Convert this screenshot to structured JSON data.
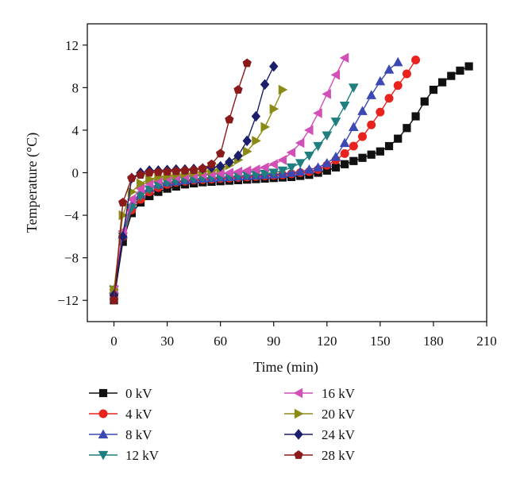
{
  "chart_data": {
    "type": "line",
    "xlabel": "Time (min)",
    "ylabel": "Temperature (°C)",
    "xlim": [
      -15,
      210
    ],
    "ylim": [
      -14,
      14
    ],
    "xticks": [
      0,
      30,
      60,
      90,
      120,
      150,
      180,
      210
    ],
    "xtick_labels": [
      "0",
      "30",
      "60",
      "90",
      "120",
      "150",
      "180",
      "210"
    ],
    "yticks": [
      -12,
      -8,
      -4,
      0,
      4,
      8,
      12
    ],
    "ytick_labels": [
      "−12",
      "−8",
      "−4",
      "0",
      "4",
      "8",
      "12"
    ],
    "grid": false,
    "legend_position": "bottom",
    "series": [
      {
        "name": "0 kV",
        "color": "#111111",
        "marker": "square",
        "x": [
          0,
          5,
          10,
          15,
          20,
          25,
          30,
          35,
          40,
          45,
          50,
          55,
          60,
          65,
          70,
          75,
          80,
          85,
          90,
          95,
          100,
          105,
          110,
          115,
          120,
          125,
          130,
          135,
          140,
          145,
          150,
          155,
          160,
          165,
          170,
          175,
          180,
          185,
          190,
          195,
          200
        ],
        "y": [
          -12,
          -6.5,
          -3.8,
          -2.8,
          -2.2,
          -1.8,
          -1.5,
          -1.3,
          -1.1,
          -1.0,
          -0.9,
          -0.85,
          -0.8,
          -0.75,
          -0.7,
          -0.65,
          -0.6,
          -0.55,
          -0.5,
          -0.45,
          -0.4,
          -0.3,
          -0.2,
          0.0,
          0.2,
          0.5,
          0.8,
          1.1,
          1.4,
          1.7,
          2.0,
          2.5,
          3.2,
          4.2,
          5.3,
          6.7,
          7.8,
          8.5,
          9.1,
          9.6,
          10.0
        ]
      },
      {
        "name": "4 kV",
        "color": "#e8231d",
        "marker": "circle",
        "x": [
          0,
          5,
          10,
          15,
          20,
          25,
          30,
          35,
          40,
          45,
          50,
          55,
          60,
          65,
          70,
          75,
          80,
          85,
          90,
          95,
          100,
          105,
          110,
          115,
          120,
          125,
          130,
          135,
          140,
          145,
          150,
          155,
          160,
          165,
          170
        ],
        "y": [
          -11.5,
          -6,
          -3.5,
          -2.5,
          -1.8,
          -1.4,
          -1.1,
          -0.9,
          -0.8,
          -0.7,
          -0.65,
          -0.6,
          -0.55,
          -0.5,
          -0.45,
          -0.4,
          -0.35,
          -0.3,
          -0.25,
          -0.2,
          -0.1,
          0.0,
          0.1,
          0.3,
          0.7,
          1.2,
          1.8,
          2.5,
          3.4,
          4.5,
          5.7,
          7.0,
          8.2,
          9.3,
          10.6
        ]
      },
      {
        "name": "8 kV",
        "color": "#3c49b5",
        "marker": "triangle-up",
        "x": [
          0,
          5,
          10,
          15,
          20,
          25,
          30,
          35,
          40,
          45,
          50,
          55,
          60,
          65,
          70,
          75,
          80,
          85,
          90,
          95,
          100,
          105,
          110,
          115,
          120,
          125,
          130,
          135,
          140,
          145,
          150,
          155,
          160
        ],
        "y": [
          -11,
          -5.8,
          -3.0,
          -2.0,
          -1.4,
          -1.1,
          -0.9,
          -0.8,
          -0.7,
          -0.6,
          -0.55,
          -0.5,
          -0.45,
          -0.4,
          -0.35,
          -0.3,
          -0.25,
          -0.2,
          -0.15,
          -0.1,
          0.0,
          0.1,
          0.3,
          0.5,
          0.9,
          1.5,
          2.8,
          4.3,
          5.8,
          7.3,
          8.6,
          9.7,
          10.4
        ]
      },
      {
        "name": "12 kV",
        "color": "#1f7f7f",
        "marker": "triangle-down",
        "x": [
          0,
          5,
          10,
          15,
          20,
          25,
          30,
          35,
          40,
          45,
          50,
          55,
          60,
          65,
          70,
          75,
          80,
          85,
          90,
          95,
          100,
          105,
          110,
          115,
          120,
          125,
          130,
          135
        ],
        "y": [
          -11,
          -6,
          -3.3,
          -2.2,
          -1.6,
          -1.2,
          -0.95,
          -0.8,
          -0.7,
          -0.6,
          -0.5,
          -0.45,
          -0.4,
          -0.35,
          -0.3,
          -0.25,
          -0.2,
          -0.1,
          0.0,
          0.2,
          0.5,
          0.9,
          1.6,
          2.5,
          3.5,
          4.8,
          6.3,
          8.0
        ]
      },
      {
        "name": "16 kV",
        "color": "#d24fb5",
        "marker": "triangle-left",
        "x": [
          0,
          5,
          10,
          15,
          20,
          25,
          30,
          35,
          40,
          45,
          50,
          55,
          60,
          65,
          70,
          75,
          80,
          85,
          90,
          95,
          100,
          105,
          110,
          115,
          120,
          125,
          130
        ],
        "y": [
          -11,
          -5.5,
          -2.5,
          -1.5,
          -1.0,
          -0.7,
          -0.5,
          -0.4,
          -0.3,
          -0.2,
          -0.15,
          -0.1,
          -0.05,
          0.0,
          0.1,
          0.2,
          0.3,
          0.5,
          0.8,
          1.2,
          1.9,
          2.8,
          4.0,
          5.6,
          7.4,
          9.2,
          10.8
        ]
      },
      {
        "name": "20 kV",
        "color": "#8a8a14",
        "marker": "triangle-right",
        "x": [
          0,
          5,
          10,
          15,
          20,
          25,
          30,
          35,
          40,
          45,
          50,
          55,
          60,
          65,
          70,
          75,
          80,
          85,
          90,
          95
        ],
        "y": [
          -11,
          -4.0,
          -1.8,
          -1.0,
          -0.6,
          -0.4,
          -0.3,
          -0.2,
          -0.1,
          0.0,
          0.1,
          0.2,
          0.4,
          0.7,
          1.2,
          2.0,
          3.0,
          4.3,
          6.0,
          7.8
        ]
      },
      {
        "name": "24 kV",
        "color": "#1b1f6b",
        "marker": "diamond",
        "x": [
          0,
          5,
          10,
          15,
          20,
          25,
          30,
          35,
          40,
          45,
          50,
          55,
          60,
          65,
          70,
          75,
          80,
          85,
          90
        ],
        "y": [
          -11.5,
          -6.0,
          -0.5,
          0.0,
          0.2,
          0.2,
          0.25,
          0.3,
          0.3,
          0.35,
          0.4,
          0.5,
          0.6,
          1.0,
          1.6,
          3.0,
          5.3,
          8.3,
          10.0
        ]
      },
      {
        "name": "28 kV",
        "color": "#8b1a1a",
        "marker": "pentagon",
        "x": [
          0,
          5,
          10,
          15,
          20,
          25,
          30,
          35,
          40,
          45,
          50,
          55,
          60,
          65,
          70,
          75
        ],
        "y": [
          -12,
          -2.8,
          -0.5,
          -0.2,
          0.0,
          0.05,
          0.1,
          0.15,
          0.2,
          0.25,
          0.4,
          0.8,
          1.8,
          5.0,
          7.8,
          10.3
        ]
      }
    ]
  }
}
